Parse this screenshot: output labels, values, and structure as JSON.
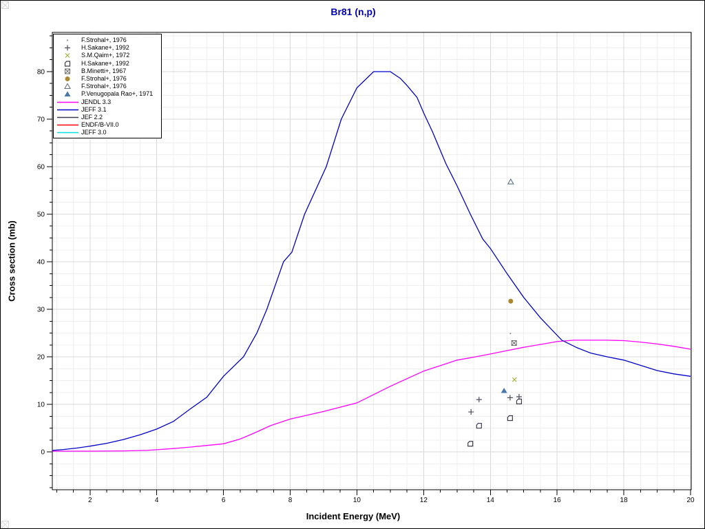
{
  "page": {
    "title": "Br81 (n,p)",
    "title_color": "#0000bb",
    "xlabel": "Incident Energy (MeV)",
    "ylabel": "Cross section (mb)"
  },
  "colors": {
    "frame": "#000000",
    "grid_major": "#d8d8d8",
    "grid_minor": "#efefef",
    "tick": "#000000",
    "tick_label": "#000000"
  },
  "chart_data": {
    "type": "line",
    "title": "Br81 (n,p)",
    "xlabel": "Incident Energy (MeV)",
    "ylabel": "Cross section (mb)",
    "xlim": [
      0.87,
      20.02
    ],
    "ylim": [
      -7.97,
      88.26
    ],
    "x_ticks_major": [
      2,
      4,
      6,
      8,
      10,
      12,
      14,
      16,
      18,
      20
    ],
    "x_tick_minor_step": 0.5,
    "y_ticks_major": [
      0,
      10,
      20,
      30,
      40,
      50,
      60,
      70,
      80
    ],
    "y_tick_minor_step": 2.5,
    "grid": "major+minor",
    "legend_position": "top-left",
    "curves": [
      {
        "label": "JENDL 3.3",
        "color": "#ff00ff",
        "visible": true,
        "points": [
          [
            0.87,
            0.15
          ],
          [
            2,
            0.15
          ],
          [
            3,
            0.2
          ],
          [
            3.7,
            0.3
          ],
          [
            4,
            0.45
          ],
          [
            4.5,
            0.7
          ],
          [
            5,
            1.0
          ],
          [
            5.5,
            1.35
          ],
          [
            6,
            1.7
          ],
          [
            6.5,
            2.7
          ],
          [
            7,
            4.2
          ],
          [
            7.4,
            5.5
          ],
          [
            8,
            6.9
          ],
          [
            9,
            8.5
          ],
          [
            10,
            10.3
          ],
          [
            11,
            13.8
          ],
          [
            12,
            17.0
          ],
          [
            13,
            19.3
          ],
          [
            13.56,
            20.0
          ],
          [
            14,
            20.6
          ],
          [
            14.5,
            21.3
          ],
          [
            15,
            22.0
          ],
          [
            16,
            23.2
          ],
          [
            16.5,
            23.5
          ],
          [
            17,
            23.5
          ],
          [
            17.5,
            23.5
          ],
          [
            18,
            23.4
          ],
          [
            18.5,
            23.1
          ],
          [
            19,
            22.7
          ],
          [
            19.5,
            22.2
          ],
          [
            20,
            21.6
          ]
        ]
      },
      {
        "label": "JEFF 3.1",
        "color": "#0000cc",
        "visible": true,
        "points": [
          [
            0.87,
            0.3
          ],
          [
            1.2,
            0.5
          ],
          [
            1.6,
            0.8
          ],
          [
            2,
            1.2
          ],
          [
            2.5,
            1.8
          ],
          [
            3,
            2.6
          ],
          [
            3.5,
            3.6
          ],
          [
            4,
            4.8
          ],
          [
            4.5,
            6.4
          ],
          [
            5,
            9.0
          ],
          [
            5.5,
            11.5
          ],
          [
            6,
            15.9
          ],
          [
            6.6,
            20.0
          ],
          [
            7,
            25.0
          ],
          [
            7.3,
            30.0
          ],
          [
            7.8,
            40.0
          ],
          [
            8.05,
            42.0
          ],
          [
            8.43,
            50.0
          ],
          [
            9.08,
            60.0
          ],
          [
            9.53,
            70.0
          ],
          [
            10,
            76.6
          ],
          [
            10.5,
            80.0
          ],
          [
            11,
            80.0
          ],
          [
            11.3,
            78.6
          ],
          [
            11.5,
            77.1
          ],
          [
            11.8,
            74.6
          ],
          [
            12,
            71.3
          ],
          [
            12.26,
            67.4
          ],
          [
            12.46,
            64.1
          ],
          [
            12.67,
            60.6
          ],
          [
            13,
            56.0
          ],
          [
            13.4,
            50.0
          ],
          [
            13.77,
            44.8
          ],
          [
            14,
            42.8
          ],
          [
            14.5,
            37.5
          ],
          [
            15,
            32.5
          ],
          [
            15.5,
            28.2
          ],
          [
            16.14,
            23.5
          ],
          [
            16.6,
            21.9
          ],
          [
            17,
            20.8
          ],
          [
            17.5,
            20.0
          ],
          [
            18,
            19.3
          ],
          [
            18.5,
            18.2
          ],
          [
            19,
            17.1
          ],
          [
            19.5,
            16.4
          ],
          [
            20,
            15.9
          ]
        ]
      },
      {
        "label": "JEF 2.2",
        "color": "#3c3c50",
        "visible": false,
        "points": []
      },
      {
        "label": "ENDF/B-VII.0",
        "color": "#ff0000",
        "visible": false,
        "points": []
      },
      {
        "label": "JEFF 3.0",
        "color": "#00e0e0",
        "visible": false,
        "points": []
      }
    ],
    "scatter": [
      {
        "label": "F.Strohal+, 1976",
        "symbol": "dot",
        "color": "#909090",
        "points": [
          [
            14.6,
            24.9
          ]
        ]
      },
      {
        "label": "H.Sakane+, 1992",
        "symbol": "plus",
        "color": "#4c4c5c",
        "points": [
          [
            13.42,
            8.4
          ],
          [
            13.66,
            11.0
          ],
          [
            14.59,
            11.4
          ],
          [
            14.86,
            11.6
          ]
        ]
      },
      {
        "label": "S.M.Qaim+, 1972",
        "symbol": "x-cross",
        "color": "#a6b135",
        "points": [
          [
            14.72,
            15.2
          ]
        ]
      },
      {
        "label": "H.Sakane+, 1992",
        "symbol": "open-square-d",
        "color": "#3c3c4c",
        "points": [
          [
            13.4,
            1.7
          ],
          [
            13.66,
            5.5
          ],
          [
            14.59,
            7.1
          ],
          [
            14.86,
            10.6
          ]
        ]
      },
      {
        "label": "B.Minetti+, 1967",
        "symbol": "square-x",
        "color": "#6e6e6e",
        "points": [
          [
            14.71,
            22.9
          ]
        ]
      },
      {
        "label": "F.Strohal+, 1976",
        "symbol": "filled-circle",
        "color": "#aa8830",
        "points": [
          [
            14.61,
            31.7
          ]
        ]
      },
      {
        "label": "F.Strohal+, 1976",
        "symbol": "open-triangle",
        "color": "#607080",
        "points": [
          [
            14.61,
            56.8
          ]
        ]
      },
      {
        "label": "P.Venugopala Rao+, 1971",
        "symbol": "filled-triangle",
        "color": "#4878a8",
        "points": [
          [
            14.41,
            12.9
          ]
        ]
      }
    ]
  },
  "legend": {
    "point_entries": [
      {
        "symbol": "dot",
        "color": "#909090",
        "label": "F.Strohal+, 1976"
      },
      {
        "symbol": "plus",
        "color": "#4c4c5c",
        "label": "H.Sakane+, 1992"
      },
      {
        "symbol": "x-cross",
        "color": "#a6b135",
        "label": "S.M.Qaim+, 1972"
      },
      {
        "symbol": "open-square-d",
        "color": "#3c3c4c",
        "label": "H.Sakane+, 1992"
      },
      {
        "symbol": "square-x",
        "color": "#6e6e6e",
        "label": "B.Minetti+, 1967"
      },
      {
        "symbol": "filled-circle",
        "color": "#aa8830",
        "label": "F.Strohal+, 1976"
      },
      {
        "symbol": "open-triangle",
        "color": "#607080",
        "label": "F.Strohal+, 1976"
      },
      {
        "symbol": "filled-triangle",
        "color": "#4878a8",
        "label": "P.Venugopala Rao+, 1971"
      }
    ],
    "curve_entries": [
      {
        "color": "#ff00ff",
        "label": "JENDL 3.3"
      },
      {
        "color": "#0000cc",
        "label": "JEFF 3.1"
      },
      {
        "color": "#3c3c50",
        "label": "JEF 2.2"
      },
      {
        "color": "#ff0000",
        "label": "ENDF/B-VII.0"
      },
      {
        "color": "#00e0e0",
        "label": "JEFF 3.0"
      }
    ]
  }
}
